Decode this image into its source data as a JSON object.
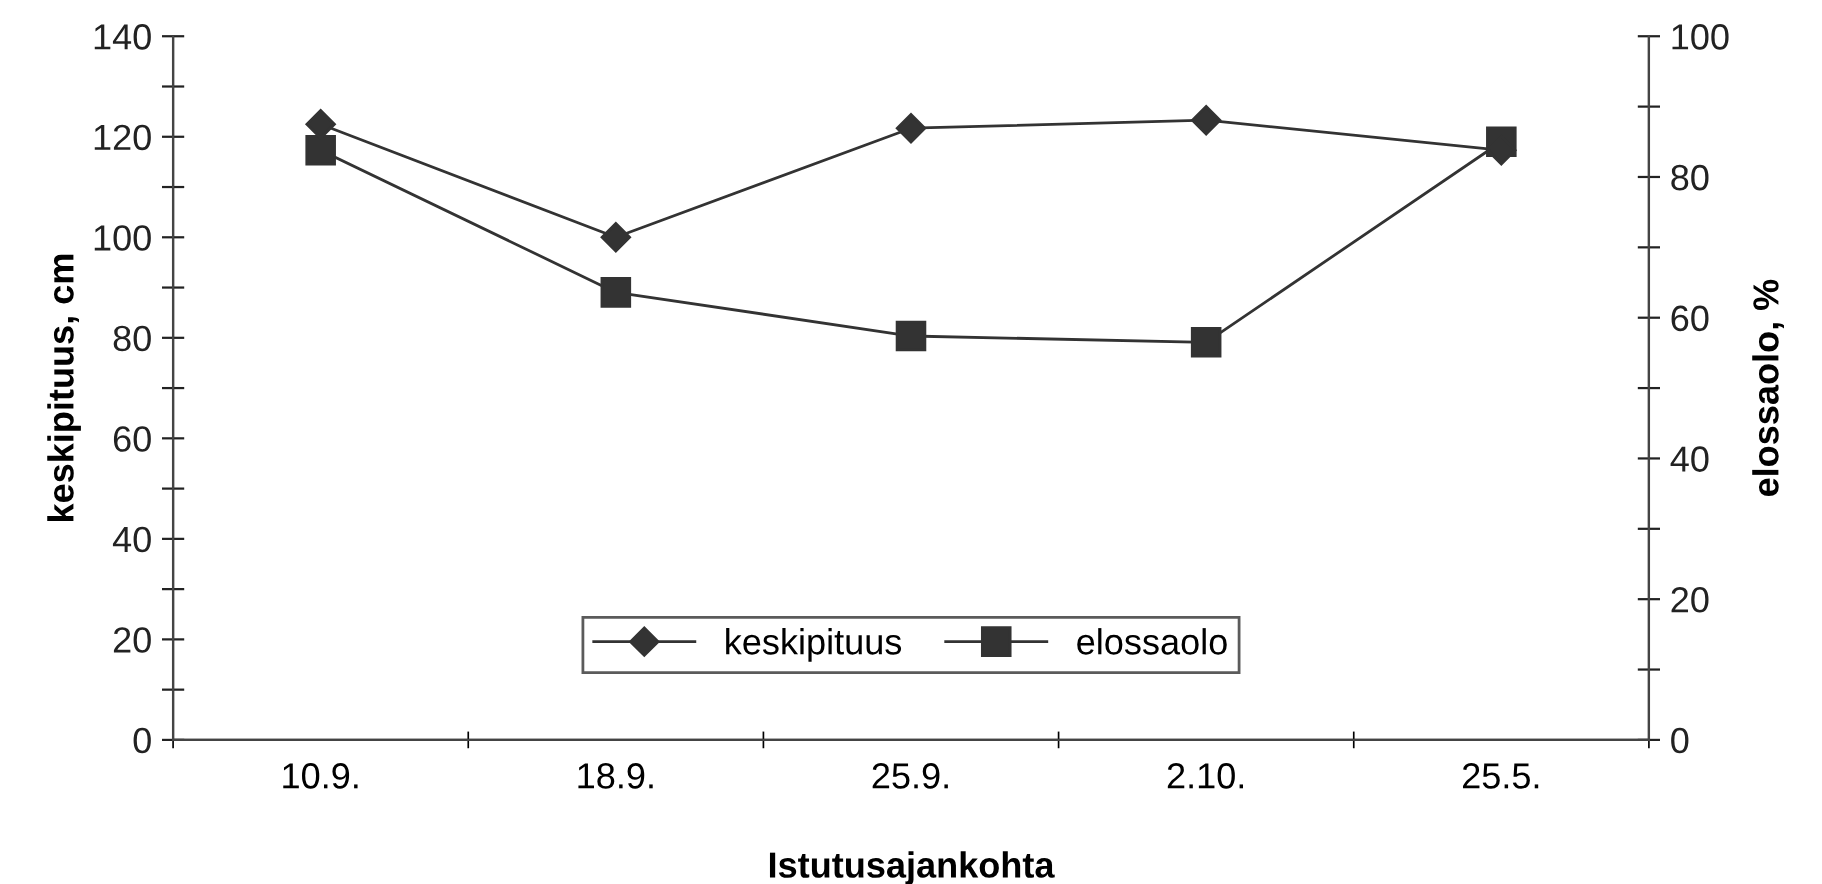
{
  "chart_data": {
    "type": "line",
    "xlabel": "Istutusajankohta",
    "ylabel": "keskipituus, cm",
    "y2label": "elossaolo, %",
    "categories": [
      "10.9.",
      "18.9.",
      "25.9.",
      "2.10.",
      "25.5."
    ],
    "series": [
      {
        "name": "keskipituus",
        "color": "#333333",
        "marker": "diamond",
        "values": [
          122.5,
          100,
          121.7,
          123.3,
          117.3
        ]
      },
      {
        "name": "elossaolo",
        "color": "#333333",
        "marker": "square",
        "axis": "y2",
        "values": [
          83.8,
          63.6,
          57.4,
          56.5,
          85
        ]
      }
    ],
    "ylim": [
      0,
      140
    ],
    "yticks": [
      0,
      {
        "value": 10,
        "label": null
      },
      20,
      {
        "value": 30,
        "label": null
      },
      40,
      {
        "value": 50,
        "label": null
      },
      60,
      {
        "value": 70,
        "label": null
      },
      80,
      {
        "value": 90,
        "label": null
      },
      100,
      {
        "value": 110,
        "label": null
      },
      120,
      {
        "value": 130,
        "label": null
      },
      140
    ],
    "y2lim": [
      0,
      100
    ],
    "y2ticks": [
      0,
      {
        "value": 10,
        "label": null
      },
      20,
      {
        "value": 30,
        "label": null
      },
      40,
      {
        "value": 50,
        "label": null
      },
      60,
      {
        "value": 70,
        "label": null
      },
      80,
      {
        "value": 90,
        "label": null
      },
      100
    ],
    "legend": "bottom",
    "grid": false,
    "line_style": "solid"
  }
}
